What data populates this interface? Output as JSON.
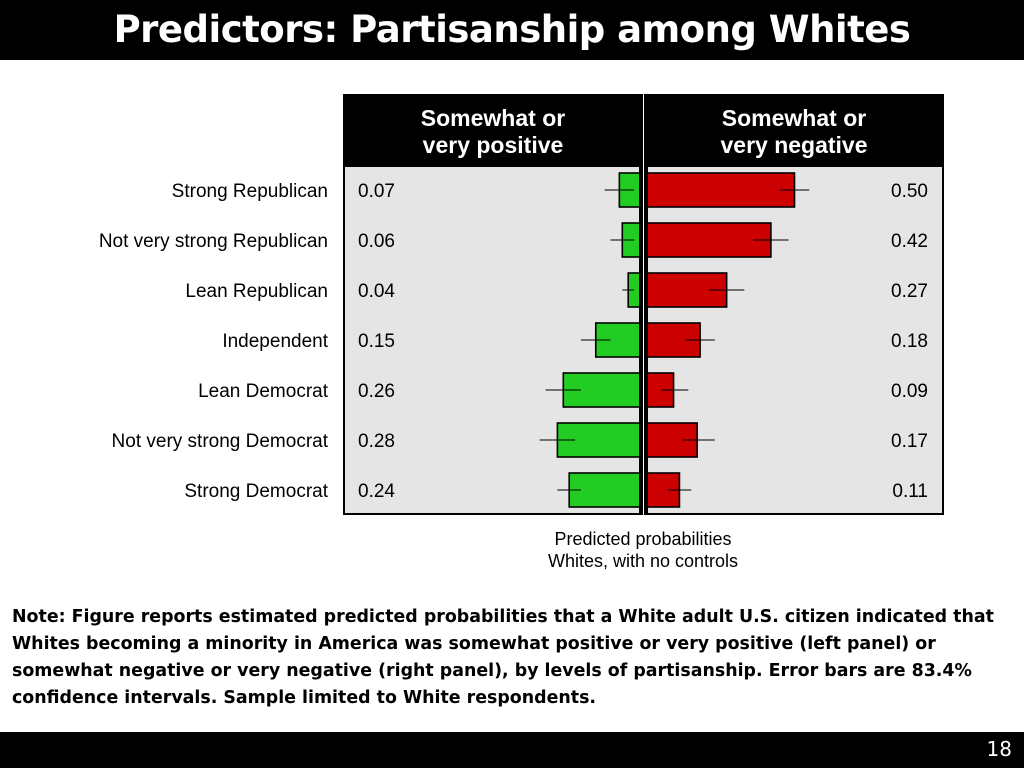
{
  "slide": {
    "title": "Predictors: Partisanship among Whites",
    "note": "Note: Figure reports estimated predicted probabilities that a White adult U.S. citizen indicated that Whites becoming a minority in America was somewhat positive or very positive (left panel) or somewhat negative or very negative (right panel), by levels of partisanship. Error bars are 83.4% confidence intervals. Sample limited to White respondents.",
    "page_number": "18"
  },
  "chart_data": {
    "type": "bar",
    "categories": [
      "Strong Republican",
      "Not very strong Republican",
      "Lean Republican",
      "Independent",
      "Lean Democrat",
      "Not very strong Democrat",
      "Strong Democrat"
    ],
    "series": [
      {
        "name": "Somewhat or very positive",
        "header_lines": [
          "Somewhat or",
          "very positive"
        ],
        "value_labels": [
          "0.07",
          "0.06",
          "0.04",
          "0.15",
          "0.26",
          "0.28",
          "0.24"
        ],
        "values": [
          0.07,
          0.06,
          0.04,
          0.15,
          0.26,
          0.28,
          0.24
        ],
        "ci": [
          [
            0.02,
            0.12
          ],
          [
            0.02,
            0.1
          ],
          [
            0.02,
            0.06
          ],
          [
            0.1,
            0.2
          ],
          [
            0.2,
            0.32
          ],
          [
            0.22,
            0.34
          ],
          [
            0.2,
            0.28
          ]
        ],
        "color": "#22cc22"
      },
      {
        "name": "Somewhat or very negative",
        "header_lines": [
          "Somewhat or",
          "very negative"
        ],
        "value_labels": [
          "0.50",
          "0.42",
          "0.27",
          "0.18",
          "0.09",
          "0.17",
          "0.11"
        ],
        "values": [
          0.5,
          0.42,
          0.27,
          0.18,
          0.09,
          0.17,
          0.11
        ],
        "ci": [
          [
            0.45,
            0.55
          ],
          [
            0.36,
            0.48
          ],
          [
            0.21,
            0.33
          ],
          [
            0.13,
            0.23
          ],
          [
            0.05,
            0.14
          ],
          [
            0.12,
            0.23
          ],
          [
            0.07,
            0.15
          ]
        ],
        "color": "#cc0000"
      }
    ],
    "xlabel_lines": [
      "Predicted probabilities",
      "Whites, with no controls"
    ],
    "panel_background": "#e5e5e5",
    "header_background": "#000000"
  }
}
